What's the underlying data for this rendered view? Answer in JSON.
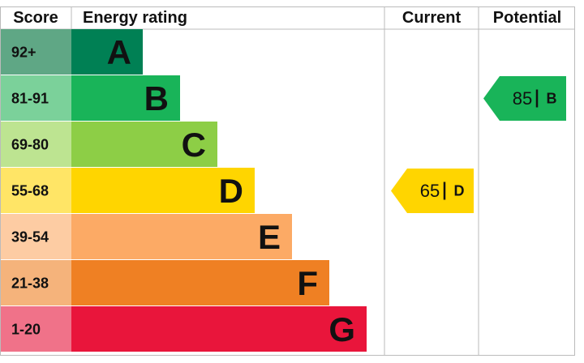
{
  "header": {
    "score": "Score",
    "energy_rating": "Energy rating",
    "current": "Current",
    "potential": "Potential"
  },
  "bands": [
    {
      "score": "92+",
      "letter": "A",
      "color": "#008054",
      "score_color": "#5fa785"
    },
    {
      "score": "81-91",
      "letter": "B",
      "color": "#19b459",
      "score_color": "#7bd19a"
    },
    {
      "score": "69-80",
      "letter": "C",
      "color": "#8dce46",
      "score_color": "#bde491"
    },
    {
      "score": "55-68",
      "letter": "D",
      "color": "#ffd500",
      "score_color": "#ffe566"
    },
    {
      "score": "39-54",
      "letter": "E",
      "color": "#fcaa65",
      "score_color": "#fdcca3"
    },
    {
      "score": "21-38",
      "letter": "F",
      "color": "#ef8023",
      "score_color": "#f5b37b"
    },
    {
      "score": "1-20",
      "letter": "G",
      "color": "#e9153b",
      "score_color": "#f07289"
    }
  ],
  "current": {
    "value": 65,
    "letter": "D"
  },
  "potential": {
    "value": 85,
    "letter": "B"
  }
}
